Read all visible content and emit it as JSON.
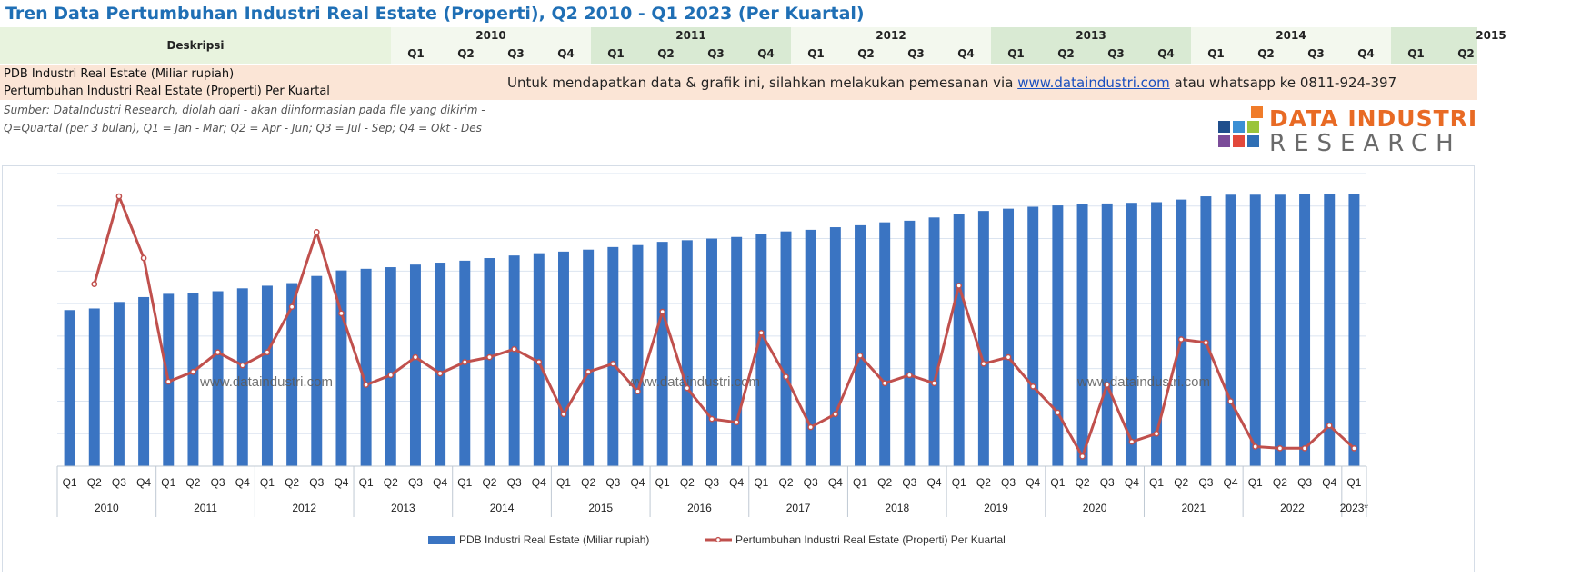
{
  "title": "Tren Data Pertumbuhan Industri Real Estate (Properti), Q2 2010 - Q1 2023 (Per Kuartal)",
  "header": {
    "desc_label": "Deskripsi",
    "years": [
      "2010",
      "2011",
      "2012",
      "2013",
      "2014",
      "2015"
    ],
    "year_quarters": [
      [
        "Q1",
        "Q2",
        "Q3",
        "Q4"
      ],
      [
        "Q1",
        "Q2",
        "Q3",
        "Q4"
      ],
      [
        "Q1",
        "Q2",
        "Q3",
        "Q4"
      ],
      [
        "Q1",
        "Q2",
        "Q3",
        "Q4"
      ],
      [
        "Q1",
        "Q2",
        "Q3",
        "Q4"
      ],
      [
        "Q1",
        "Q2"
      ]
    ]
  },
  "rows": {
    "row1_label": "PDB Industri Real Estate (Miliar rupiah)",
    "row2_label": "Pertumbuhan Industri Real Estate (Properti) Per Kuartal"
  },
  "notice": {
    "text_before": "Untuk mendapatkan data & grafik ini, silahkan melakukan pemesanan via ",
    "link": "www.dataindustri.com",
    "text_after": " atau whatsapp ke 0811-924-397"
  },
  "source": {
    "line1": "Sumber: DataIndustri Research, diolah dari - akan diinformasian pada file yang dikirim -",
    "line2": "Q=Quartal (per 3 bulan), Q1 = Jan - Mar; Q2 = Apr - Jun; Q3 = Jul - Sep; Q4 = Okt - Des"
  },
  "logo": {
    "line1": "DATA INDUSTRI",
    "line2": "RESEARCH",
    "colors": [
      "#f07c2a",
      "#3b8fd4",
      "#9ac43c",
      "#7b4c99",
      "#e2483b",
      "#2f6fb5",
      "#1f4e8c"
    ]
  },
  "chart_data": {
    "type": "bar",
    "categories": [
      "Q1",
      "Q2",
      "Q3",
      "Q4",
      "Q1",
      "Q2",
      "Q3",
      "Q4",
      "Q1",
      "Q2",
      "Q3",
      "Q4",
      "Q1",
      "Q2",
      "Q3",
      "Q4",
      "Q1",
      "Q2",
      "Q3",
      "Q4",
      "Q1",
      "Q2",
      "Q3",
      "Q4",
      "Q1",
      "Q2",
      "Q3",
      "Q4",
      "Q1",
      "Q2",
      "Q3",
      "Q4",
      "Q1",
      "Q2",
      "Q3",
      "Q4",
      "Q1",
      "Q2",
      "Q3",
      "Q4",
      "Q1",
      "Q2",
      "Q3",
      "Q4",
      "Q1",
      "Q2",
      "Q3",
      "Q4",
      "Q1",
      "Q2",
      "Q3",
      "Q4",
      "Q1"
    ],
    "year_groups": [
      {
        "label": "2010",
        "count": 4
      },
      {
        "label": "2011",
        "count": 4
      },
      {
        "label": "2012",
        "count": 4
      },
      {
        "label": "2013",
        "count": 4
      },
      {
        "label": "2014",
        "count": 4
      },
      {
        "label": "2015",
        "count": 4
      },
      {
        "label": "2016",
        "count": 4
      },
      {
        "label": "2017",
        "count": 4
      },
      {
        "label": "2018",
        "count": 4
      },
      {
        "label": "2019",
        "count": 4
      },
      {
        "label": "2020",
        "count": 4
      },
      {
        "label": "2021",
        "count": 4
      },
      {
        "label": "2022",
        "count": 4
      },
      {
        "label": "2023*",
        "count": 1
      }
    ],
    "series": [
      {
        "name": "PDB Industri Real Estate (Miliar rupiah)",
        "kind": "bar",
        "color": "#3a74c2",
        "values": [
          4.8,
          4.85,
          5.05,
          5.2,
          5.3,
          5.32,
          5.38,
          5.47,
          5.55,
          5.63,
          5.85,
          6.02,
          6.07,
          6.12,
          6.2,
          6.26,
          6.32,
          6.4,
          6.48,
          6.55,
          6.6,
          6.66,
          6.74,
          6.8,
          6.9,
          6.95,
          7.0,
          7.05,
          7.15,
          7.22,
          7.27,
          7.35,
          7.41,
          7.5,
          7.55,
          7.65,
          7.75,
          7.85,
          7.92,
          7.98,
          8.02,
          8.05,
          8.08,
          8.1,
          8.12,
          8.2,
          8.3,
          8.35,
          8.35,
          8.35,
          8.36,
          8.38,
          8.38
        ]
      },
      {
        "name": "Pertumbuhan Industri Real Estate (Properti) Per Kuartal",
        "kind": "line",
        "color": "#c0504d",
        "values": [
          null,
          5.6,
          8.3,
          6.4,
          2.6,
          2.9,
          3.5,
          3.1,
          3.5,
          4.9,
          7.2,
          4.7,
          2.5,
          2.8,
          3.35,
          2.85,
          3.2,
          3.35,
          3.6,
          3.2,
          1.6,
          2.9,
          3.15,
          2.3,
          4.75,
          2.4,
          1.45,
          1.35,
          4.1,
          2.75,
          1.2,
          1.6,
          3.4,
          2.55,
          2.8,
          2.55,
          5.55,
          3.15,
          3.35,
          2.45,
          1.65,
          0.3,
          2.5,
          0.75,
          1.0,
          3.9,
          3.8,
          2.0,
          0.6,
          0.55,
          0.55,
          1.25,
          0.55
        ]
      }
    ],
    "ylim": [
      0,
      9
    ],
    "grid": true,
    "watermark": "www.dataindustri.com",
    "legend_position": "bottom"
  }
}
